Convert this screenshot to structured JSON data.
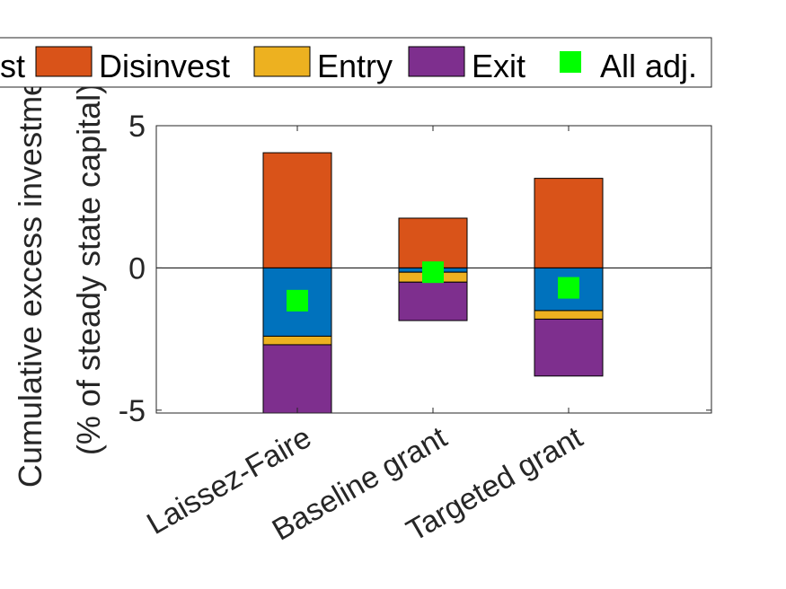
{
  "chart_data": {
    "type": "bar",
    "stacked": true,
    "categories": [
      "Laissez-Faire",
      "Baseline grant",
      "Targeted grant"
    ],
    "ylabel_line1": "Cumulative excess investment",
    "ylabel_line2": "(% of steady state capital)",
    "ylim": [
      -5.1,
      5
    ],
    "yticks": [
      {
        "value": 5,
        "label": "5"
      },
      {
        "value": 0,
        "label": "0"
      },
      {
        "value": -5,
        "label": "-5"
      }
    ],
    "series": [
      {
        "name": "Invest",
        "color": "#0072BD",
        "values": [
          -2.4,
          -0.15,
          -1.5
        ]
      },
      {
        "name": "Disinvest",
        "color": "#D95319",
        "values": [
          4.05,
          1.75,
          3.15
        ]
      },
      {
        "name": "Entry",
        "color": "#EDB120",
        "values": [
          -0.3,
          -0.35,
          -0.3
        ]
      },
      {
        "name": "Exit",
        "color": "#7E2F8E",
        "values": [
          -2.45,
          -1.35,
          -2.0
        ]
      }
    ],
    "markers": {
      "name": "All adj.",
      "color": "#00FF00",
      "values": [
        -1.15,
        -0.15,
        -0.7
      ]
    },
    "legend": {
      "placement": "top",
      "entries": [
        {
          "label": "st",
          "color": null
        },
        {
          "label": "Disinvest",
          "color": "#D95319"
        },
        {
          "label": "Entry",
          "color": "#EDB120"
        },
        {
          "label": "Exit",
          "color": "#7E2F8E"
        },
        {
          "label": "All adj.",
          "color": "#00FF00",
          "marker": true
        }
      ]
    }
  }
}
